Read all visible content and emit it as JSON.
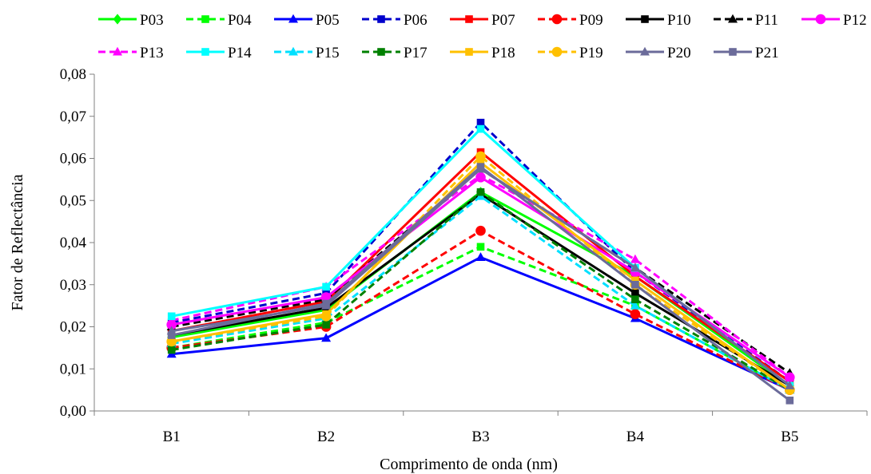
{
  "chart_data": {
    "type": "line",
    "title": "",
    "xlabel": "Comprimento de onda (nm)",
    "ylabel": "Fator de Reflectância",
    "categories": [
      "B1",
      "B2",
      "B3",
      "B4",
      "B5"
    ],
    "ylim": [
      0,
      0.08
    ],
    "yticks": [
      "0,00",
      "0,01",
      "0,02",
      "0,03",
      "0,04",
      "0,05",
      "0,06",
      "0,07",
      "0,08"
    ],
    "grid": false,
    "legend": "top",
    "series": [
      {
        "name": "P03",
        "color": "#00ff00",
        "dash": "solid",
        "marker": "diamond",
        "values": [
          0.0175,
          0.024,
          0.052,
          0.032,
          0.006
        ]
      },
      {
        "name": "P04",
        "color": "#00ff00",
        "dash": "dashed",
        "marker": "square",
        "values": [
          0.015,
          0.021,
          0.039,
          0.025,
          0.005
        ]
      },
      {
        "name": "P05",
        "color": "#0000ff",
        "dash": "solid",
        "marker": "triangle",
        "values": [
          0.0135,
          0.0173,
          0.0365,
          0.022,
          0.005
        ]
      },
      {
        "name": "P06",
        "color": "#0000cc",
        "dash": "dashed",
        "marker": "square",
        "values": [
          0.021,
          0.028,
          0.0685,
          0.033,
          0.007
        ]
      },
      {
        "name": "P07",
        "color": "#ff0000",
        "dash": "solid",
        "marker": "square",
        "values": [
          0.019,
          0.026,
          0.0615,
          0.032,
          0.007
        ]
      },
      {
        "name": "P09",
        "color": "#ff0000",
        "dash": "dashed",
        "marker": "circle",
        "values": [
          0.015,
          0.02,
          0.0428,
          0.023,
          0.005
        ]
      },
      {
        "name": "P10",
        "color": "#000000",
        "dash": "solid",
        "marker": "square",
        "values": [
          0.018,
          0.0245,
          0.0515,
          0.028,
          0.006
        ]
      },
      {
        "name": "P11",
        "color": "#000000",
        "dash": "dashed",
        "marker": "triangle",
        "values": [
          0.02,
          0.0265,
          0.0575,
          0.034,
          0.009
        ]
      },
      {
        "name": "P12",
        "color": "#ff00ff",
        "dash": "solid",
        "marker": "circle",
        "values": [
          0.0205,
          0.027,
          0.0555,
          0.033,
          0.008
        ]
      },
      {
        "name": "P13",
        "color": "#ff00ff",
        "dash": "dashed",
        "marker": "triangle",
        "values": [
          0.0215,
          0.0295,
          0.056,
          0.036,
          0.008
        ]
      },
      {
        "name": "P14",
        "color": "#00ffff",
        "dash": "solid",
        "marker": "square",
        "values": [
          0.0225,
          0.0295,
          0.067,
          0.034,
          0.006
        ]
      },
      {
        "name": "P15",
        "color": "#00e0ff",
        "dash": "dashed",
        "marker": "triangle",
        "values": [
          0.016,
          0.022,
          0.051,
          0.025,
          0.005
        ]
      },
      {
        "name": "P17",
        "color": "#008000",
        "dash": "dashed",
        "marker": "square",
        "values": [
          0.0145,
          0.0205,
          0.052,
          0.0265,
          0.005
        ]
      },
      {
        "name": "P18",
        "color": "#ffc000",
        "dash": "solid",
        "marker": "square",
        "values": [
          0.0165,
          0.023,
          0.059,
          0.031,
          0.005
        ]
      },
      {
        "name": "P19",
        "color": "#ffc000",
        "dash": "dashed",
        "marker": "circle",
        "values": [
          0.0165,
          0.0225,
          0.0605,
          0.03,
          0.005
        ]
      },
      {
        "name": "P20",
        "color": "#6b6b9a",
        "dash": "solid",
        "marker": "triangle",
        "values": [
          0.019,
          0.025,
          0.0575,
          0.034,
          0.006
        ]
      },
      {
        "name": "P21",
        "color": "#6b6b9a",
        "dash": "solid",
        "marker": "square",
        "values": [
          0.018,
          0.0255,
          0.058,
          0.03,
          0.0025
        ]
      }
    ]
  }
}
